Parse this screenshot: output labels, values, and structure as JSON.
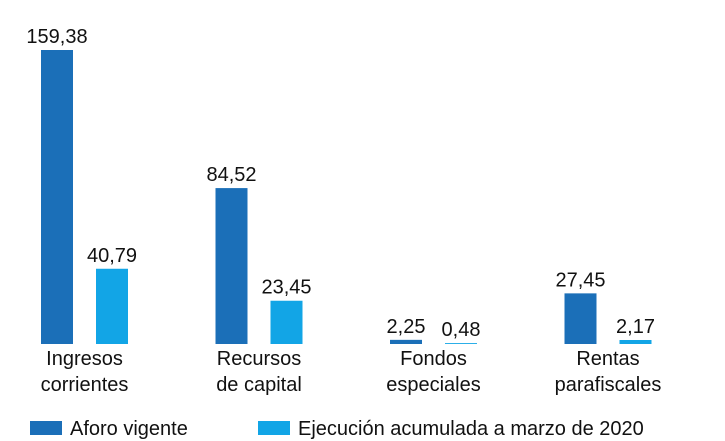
{
  "chart_data": {
    "type": "bar",
    "categories": [
      [
        "Ingresos",
        "corrientes"
      ],
      [
        "Recursos",
        "de capital"
      ],
      [
        "Fondos",
        "especiales"
      ],
      [
        "Rentas",
        "parafiscales"
      ]
    ],
    "series": [
      {
        "name": "Aforo vigente",
        "color": "#1b6fb8",
        "values": [
          159.38,
          84.52,
          2.25,
          27.45
        ],
        "value_labels": [
          "159,38",
          "84,52",
          "2,25",
          "27,45"
        ]
      },
      {
        "name": "Ejecución acumulada a marzo de 2020",
        "color": "#12a5e6",
        "values": [
          40.79,
          23.45,
          0.48,
          2.17
        ],
        "value_labels": [
          "40,79",
          "23,45",
          "0,48",
          "2,17"
        ]
      }
    ],
    "legend": "bottom"
  }
}
